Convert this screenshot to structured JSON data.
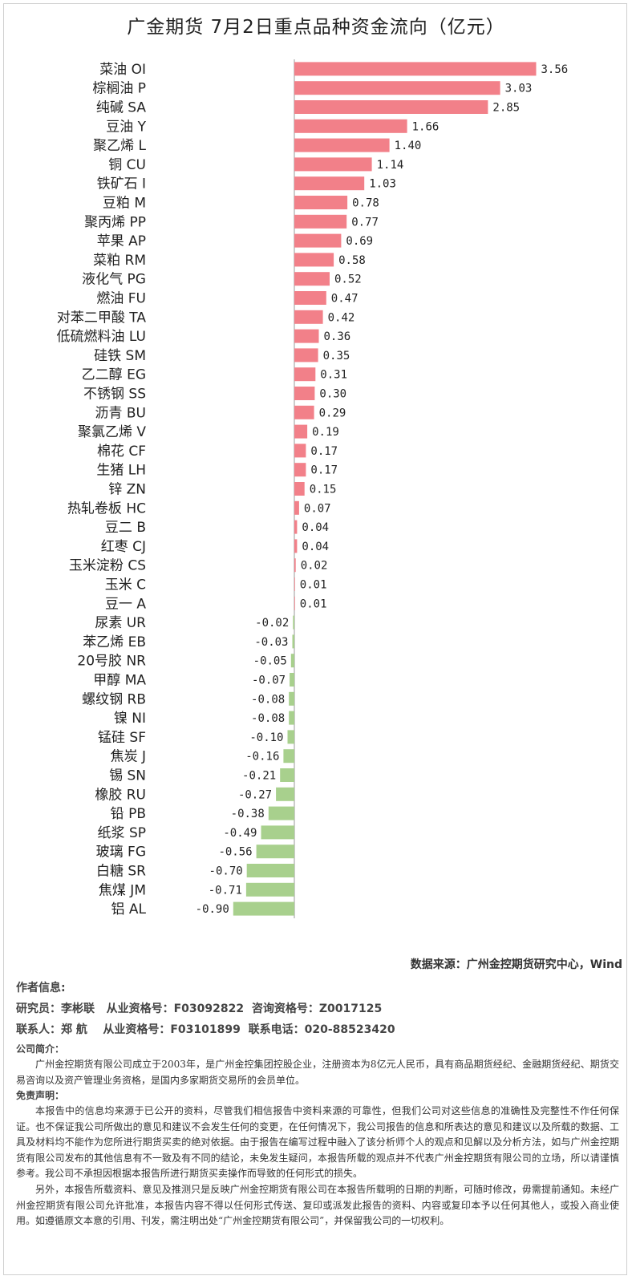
{
  "title": "广金期货 7月2日重点品种资金流向（亿元）",
  "colors": {
    "positive": "#f28089",
    "negative": "#a8d08d",
    "axis": "#999999"
  },
  "chart_data": {
    "type": "bar",
    "orientation": "horizontal",
    "title": "广金期货 7月2日重点品种资金流向（亿元）",
    "categories": [
      "菜油 OI",
      "棕榈油 P",
      "纯碱 SA",
      "豆油 Y",
      "聚乙烯 L",
      "铜 CU",
      "铁矿石 I",
      "豆粕 M",
      "聚丙烯 PP",
      "苹果 AP",
      "菜粕 RM",
      "液化气 PG",
      "燃油 FU",
      "对苯二甲酸 TA",
      "低硫燃料油 LU",
      "硅铁 SM",
      "乙二醇 EG",
      "不锈钢 SS",
      "沥青 BU",
      "聚氯乙烯 V",
      "棉花 CF",
      "生猪 LH",
      "锌 ZN",
      "热轧卷板 HC",
      "豆二 B",
      "红枣 CJ",
      "玉米淀粉 CS",
      "玉米 C",
      "豆一 A",
      "尿素 UR",
      "苯乙烯 EB",
      "20号胶 NR",
      "甲醇 MA",
      "螺纹钢 RB",
      "镍 NI",
      "锰硅 SF",
      "焦炭 J",
      "锡 SN",
      "橡胶 RU",
      "铅 PB",
      "纸浆 SP",
      "玻璃 FG",
      "白糖 SR",
      "焦煤 JM",
      "铝 AL"
    ],
    "values": [
      3.56,
      3.03,
      2.85,
      1.66,
      1.4,
      1.14,
      1.03,
      0.78,
      0.77,
      0.69,
      0.58,
      0.52,
      0.47,
      0.42,
      0.36,
      0.35,
      0.31,
      0.3,
      0.29,
      0.19,
      0.17,
      0.17,
      0.15,
      0.07,
      0.04,
      0.04,
      0.02,
      0.01,
      0.01,
      -0.02,
      -0.03,
      -0.05,
      -0.07,
      -0.08,
      -0.08,
      -0.1,
      -0.16,
      -0.21,
      -0.27,
      -0.38,
      -0.49,
      -0.56,
      -0.7,
      -0.71,
      -0.9
    ],
    "value_labels": [
      "3.56",
      "3.03",
      "2.85",
      "1.66",
      "1.40",
      "1.14",
      "1.03",
      "0.78",
      "0.77",
      "0.69",
      "0.58",
      "0.52",
      "0.47",
      "0.42",
      "0.36",
      "0.35",
      "0.31",
      "0.30",
      "0.29",
      "0.19",
      "0.17",
      "0.17",
      "0.15",
      "0.07",
      "0.04",
      "0.04",
      "0.02",
      "0.01",
      "0.01",
      "-0.02",
      "-0.03",
      "-0.05",
      "-0.07",
      "-0.08",
      "-0.08",
      "-0.10",
      "-0.16",
      "-0.21",
      "-0.27",
      "-0.38",
      "-0.49",
      "-0.56",
      "-0.70",
      "-0.71",
      "-0.90"
    ]
  },
  "source": "数据来源：广州金控期货研究中心，Wind",
  "author": {
    "heading": "作者信息:",
    "line1": "研究员：李彬联   从业资格号：F03092822  咨询资格号：Z0017125",
    "line2": "联系人：郑 航    从业资格号：F03101899  联系电话：020-88523420"
  },
  "company": {
    "heading": "公司简介：",
    "text": "广州金控期货有限公司成立于2003年，是广州金控集团控股企业，注册资本为8亿元人民币，具有商品期货经纪、金融期货经纪、期货交易咨询以及资产管理业务资格，是国内多家期货交易所的会员单位。"
  },
  "disclaimer": {
    "heading": "免责声明：",
    "p1": "本报告中的信息均来源于已公开的资料，尽管我们相信报告中资料来源的可靠性，但我们公司对这些信息的准确性及完整性不作任何保证。也不保证我公司所做出的意见和建议不会发生任何的变更，在任何情况下，我公司报告的信息和所表达的意见和建议以及所载的数据、工具及材料均不能作为您所进行期货买卖的绝对依据。由于报告在编写过程中融入了该分析师个人的观点和见解以及分析方法，如与广州金控期货有限公司发布的其他信息有不一致及有不同的结论，未免发生疑问，本报告所载的观点并不代表广州金控期货有限公司的立场，所以请谨慎参考。我公司不承担因根据本报告所进行期货买卖操作而导致的任何形式的损失。",
    "p2": "另外，本报告所载资料、意见及推测只是反映广州金控期货有限公司在本报告所载明的日期的判断，可随时修改，毋需提前通知。未经广州金控期货有限公司允许批准，本报告内容不得以任何形式传送、复印或派发此报告的资料、内容或复印本予以任何其他人，或投入商业使用。如遵循原文本意的引用、刊发，需注明出处“广州金控期货有限公司”，并保留我公司的一切权利。"
  }
}
